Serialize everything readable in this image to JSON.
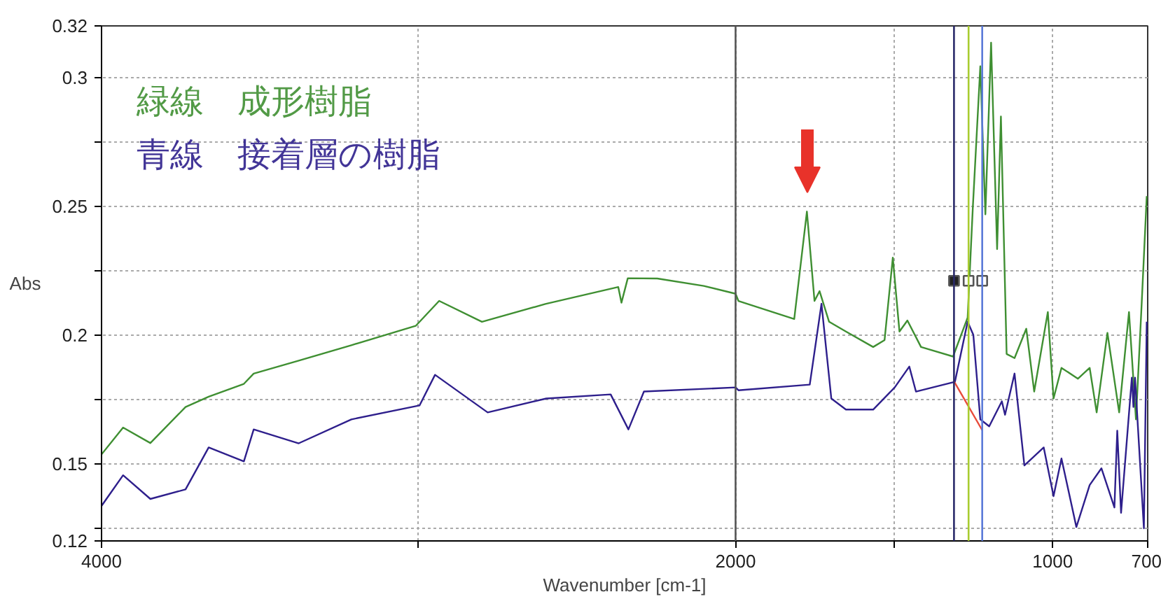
{
  "chart_data": {
    "type": "line",
    "xlabel": "Wavenumber [cm-1]",
    "ylabel": "Abs",
    "xlim": [
      4000,
      700
    ],
    "ylim": [
      0.12,
      0.32
    ],
    "xticks": [
      4000,
      {
        "value": 3000,
        "label": null
      },
      2000,
      {
        "value": 1500,
        "label": null
      },
      1000,
      700
    ],
    "yticks": [
      0.12,
      {
        "value": 0.125,
        "label": null
      },
      0.15,
      {
        "value": 0.175,
        "label": null
      },
      0.2,
      {
        "value": 0.225,
        "label": null
      },
      0.25,
      {
        "value": 0.275,
        "label": null
      },
      0.3,
      0.32
    ],
    "grid": true,
    "legend": "top left",
    "ref_lines": [
      {
        "axis": "x",
        "value": 2000,
        "color": "#555555"
      },
      {
        "axis": "x",
        "value": 1311,
        "color": "#2a2a6a"
      },
      {
        "axis": "x",
        "value": 1265,
        "color": "#a8cc30"
      },
      {
        "axis": "x",
        "value": 1222,
        "color": "#5a7ad8"
      }
    ],
    "series": [
      {
        "name": "緑線　成形樹脂",
        "color": "#3f8f32",
        "x": [
          4000,
          3932,
          3846,
          3735,
          3662,
          3551,
          3520,
          3378,
          3212,
          3009,
          2935,
          2800,
          2600,
          2370,
          2360,
          2340,
          2247,
          2100,
          2000,
          1991,
          1815,
          1775,
          1751,
          1735,
          1705,
          1652,
          1566,
          1530,
          1504,
          1483,
          1458,
          1415,
          1314,
          1268,
          1252,
          1228,
          1212,
          1194,
          1175,
          1163,
          1145,
          1120,
          1083,
          1058,
          1015,
          997,
          972,
          920,
          883,
          861,
          827,
          790,
          759,
          737,
          719,
          703
        ],
        "values": [
          0.1536,
          0.164,
          0.158,
          0.172,
          0.176,
          0.181,
          0.185,
          0.19,
          0.196,
          0.2035,
          0.2132,
          0.2051,
          0.212,
          0.2186,
          0.2125,
          0.222,
          0.2219,
          0.219,
          0.216,
          0.2132,
          0.2062,
          0.2479,
          0.2132,
          0.217,
          0.2051,
          0.2013,
          0.1953,
          0.198,
          0.23,
          0.2013,
          0.2056,
          0.1953,
          0.1916,
          0.2067,
          0.2485,
          0.3043,
          0.2468,
          0.3135,
          0.2333,
          0.2848,
          0.1926,
          0.191,
          0.2024,
          0.178,
          0.2089,
          0.1753,
          0.1872,
          0.183,
          0.1872,
          0.1699,
          0.2008,
          0.1699,
          0.2089,
          0.1672,
          0.2121,
          0.2539
        ]
      },
      {
        "name": "青線　接着層の樹脂",
        "color": "#2e1f8c",
        "x": [
          4000,
          3932,
          3846,
          3735,
          3662,
          3551,
          3520,
          3378,
          3212,
          2997,
          2948,
          2782,
          2597,
          2394,
          2338,
          2289,
          2000,
          1991,
          1766,
          1729,
          1698,
          1652,
          1566,
          1498,
          1452,
          1431,
          1308,
          1268,
          1250,
          1228,
          1200,
          1160,
          1150,
          1120,
          1089,
          1028,
          997,
          972,
          925,
          883,
          846,
          805,
          796,
          784,
          750,
          745,
          740,
          712,
          703
        ],
        "values": [
          0.1336,
          0.1455,
          0.1363,
          0.14,
          0.1563,
          0.1509,
          0.1633,
          0.1579,
          0.1672,
          0.1726,
          0.1845,
          0.1699,
          0.1753,
          0.1769,
          0.1633,
          0.178,
          0.1796,
          0.1785,
          0.1807,
          0.2121,
          0.1753,
          0.171,
          0.171,
          0.1796,
          0.1877,
          0.178,
          0.1818,
          0.2051,
          0.2,
          0.1672,
          0.1645,
          0.1742,
          0.169,
          0.185,
          0.1493,
          0.1563,
          0.1374,
          0.152,
          0.1254,
          0.1417,
          0.1482,
          0.133,
          0.1628,
          0.1309,
          0.1834,
          0.172,
          0.1834,
          0.1249,
          0.2051
        ]
      },
      {
        "type": "line",
        "color": "#e84a3a",
        "x": [
          1311,
          1222
        ],
        "values": [
          0.182,
          0.163
        ]
      },
      {
        "type": "scatter",
        "marker": "square",
        "x": [
          1311,
          1265,
          1222
        ],
        "values": [
          0.221,
          0.221,
          0.221
        ],
        "colors": [
          "#222222",
          "#ffffff",
          "#ffffff"
        ],
        "color": "#555555"
      }
    ]
  }
}
